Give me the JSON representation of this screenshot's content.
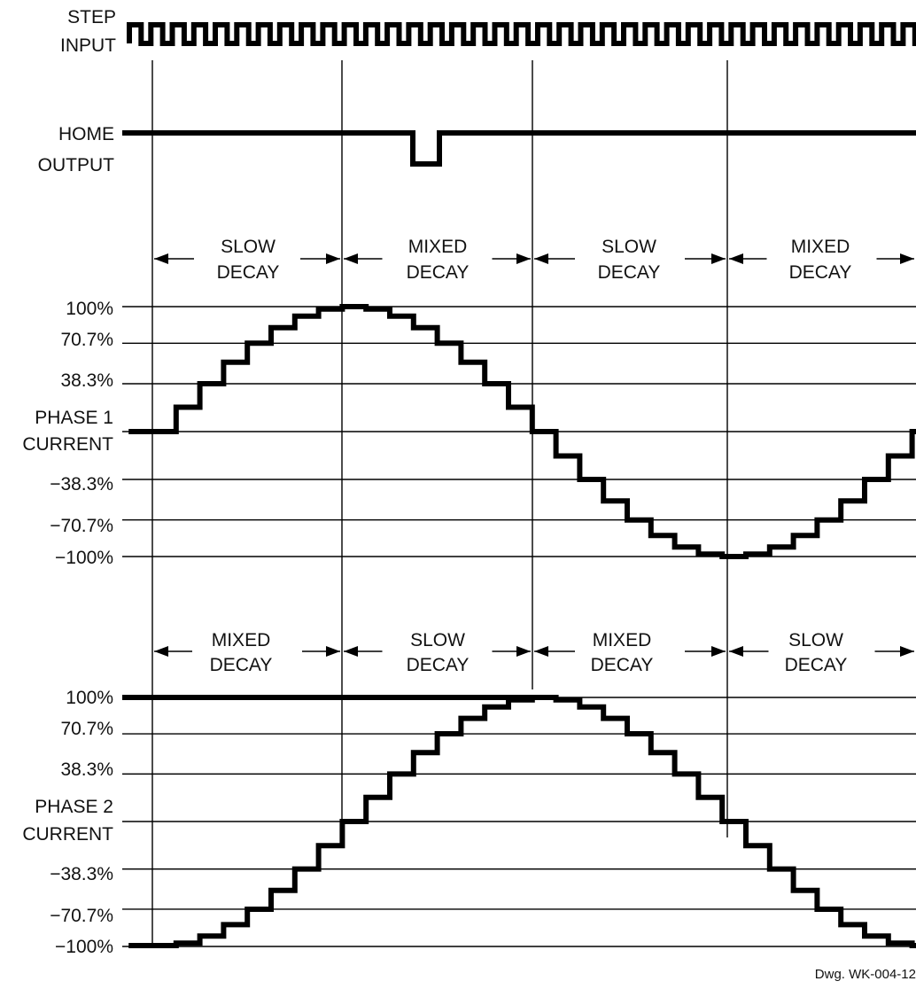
{
  "step_input": {
    "label_line1": "STEP",
    "label_line2": "INPUT",
    "pulse_count": 37
  },
  "home_output": {
    "label_line1": "HOME",
    "label_line2": "OUTPUT"
  },
  "phase1": {
    "label_line1": "PHASE 1",
    "label_line2": "CURRENT",
    "levels": [
      "100%",
      "70.7%",
      "38.3%",
      "−38.3%",
      "−70.7%",
      "−100%"
    ],
    "sections": [
      {
        "line1": "SLOW",
        "line2": "DECAY"
      },
      {
        "line1": "MIXED",
        "line2": "DECAY"
      },
      {
        "line1": "SLOW",
        "line2": "DECAY"
      },
      {
        "line1": "MIXED",
        "line2": "DECAY"
      }
    ]
  },
  "phase2": {
    "label_line1": "PHASE 2",
    "label_line2": "CURRENT",
    "levels": [
      "100%",
      "70.7%",
      "38.3%",
      "−38.3%",
      "−70.7%",
      "−100%"
    ],
    "sections": [
      {
        "line1": "MIXED",
        "line2": "DECAY"
      },
      {
        "line1": "SLOW",
        "line2": "DECAY"
      },
      {
        "line1": "MIXED",
        "line2": "DECAY"
      },
      {
        "line1": "SLOW",
        "line2": "DECAY"
      }
    ]
  },
  "drawing_number": "Dwg. WK-004-12"
}
